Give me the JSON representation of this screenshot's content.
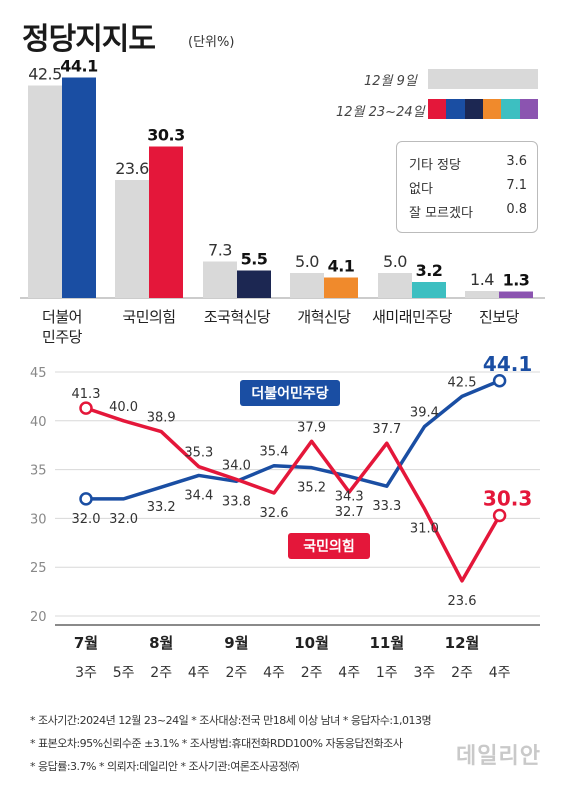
{
  "title": "정당지지도",
  "unit_label": "(단위%)",
  "legend": {
    "dec9_label": "12월 9일",
    "dec23_label": "12월 23~24일"
  },
  "colors": {
    "previous": "#d9d9d9",
    "democratic": "#1a4ea3",
    "ppp": "#e4173a",
    "rebuilding": "#1c2752",
    "reform": "#f08a2c",
    "newfuture": "#3dbfc1",
    "progressive": "#8b54b0"
  },
  "others": [
    {
      "label": "기타 정당",
      "value": "3.6"
    },
    {
      "label": "없다",
      "value": "7.1"
    },
    {
      "label": "잘 모르겠다",
      "value": "0.8"
    }
  ],
  "chart_data": [
    {
      "type": "bar",
      "categories": [
        "더불어\n민주당",
        "국민의힘",
        "조국혁신당",
        "개혁신당",
        "새미래민주당",
        "진보당"
      ],
      "series": [
        {
          "name": "12월 9일",
          "values": [
            42.5,
            23.6,
            7.3,
            5.0,
            5.0,
            1.4
          ]
        },
        {
          "name": "12월 23~24일",
          "values": [
            44.1,
            30.3,
            5.5,
            4.1,
            3.2,
            1.3
          ]
        }
      ],
      "title": "정당지지도"
    },
    {
      "type": "line",
      "x": [
        "7월 3주",
        "7월 5주",
        "8월 2주",
        "8월 4주",
        "9월 2주",
        "9월 4주",
        "10월 2주",
        "10월 4주",
        "11월 1주",
        "11월 3주",
        "12월 2주",
        "12월 4주"
      ],
      "month_labels": [
        "7월",
        "8월",
        "9월",
        "10월",
        "11월",
        "12월"
      ],
      "week_labels": [
        "3주",
        "5주",
        "2주",
        "4주",
        "2주",
        "4주",
        "2주",
        "4주",
        "1주",
        "3주",
        "2주",
        "4주"
      ],
      "series": [
        {
          "name": "더불어민주당",
          "values": [
            32.0,
            32.0,
            33.2,
            34.4,
            33.8,
            35.4,
            35.2,
            34.3,
            33.3,
            39.4,
            42.5,
            44.1
          ]
        },
        {
          "name": "국민의힘",
          "values": [
            41.3,
            40.0,
            38.9,
            35.3,
            34.0,
            32.6,
            37.9,
            32.7,
            37.7,
            31.0,
            23.6,
            30.3
          ]
        }
      ],
      "ylim": [
        20,
        45
      ],
      "yticks": [
        20,
        25,
        30,
        35,
        40,
        45
      ]
    }
  ],
  "footer": [
    "* 조사기간:2024년 12월 23~24일  * 조사대상:전국 만18세 이상 남녀  * 응답자수:1,013명",
    "* 표본오차:95%신뢰수준 ±3.1%  * 조사방법:휴대전화RDD100% 자동응답전화조사",
    "* 응답률:3.7%  * 의뢰자:데일리안  * 조사기관:여론조사공정㈜"
  ],
  "watermark": "데일리안"
}
